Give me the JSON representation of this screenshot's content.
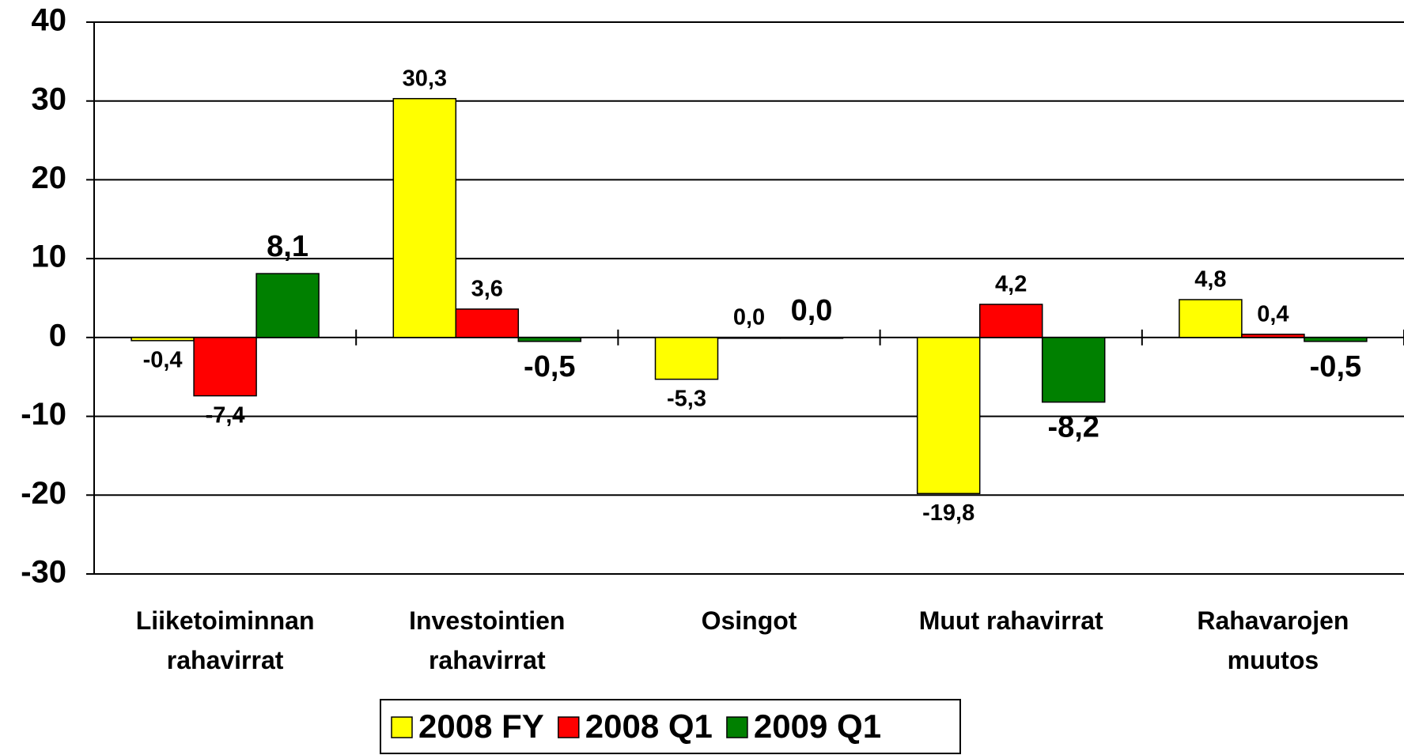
{
  "chart_data": {
    "type": "bar",
    "categories": [
      "Liiketoiminnan\nrahavirrat",
      "Investointien\nrahavirrat",
      "Osingot",
      "Muut rahavirrat",
      "Rahavarojen\nmuutos"
    ],
    "series": [
      {
        "name": "2008 FY",
        "color": "#ffff00",
        "values": [
          -0.4,
          30.3,
          -5.3,
          -19.8,
          4.8
        ],
        "value_labels": [
          "-0,4",
          "30,3",
          "-5,3",
          "-19,8",
          "4,8"
        ]
      },
      {
        "name": "2008 Q1",
        "color": "#ff0000",
        "values": [
          -7.4,
          3.6,
          0.0,
          4.2,
          0.4
        ],
        "value_labels": [
          "-7,4",
          "3,6",
          "0,0",
          "4,2",
          "0,4"
        ]
      },
      {
        "name": "2009 Q1",
        "color": "#008000",
        "values": [
          8.1,
          -0.5,
          0.0,
          -8.2,
          -0.5
        ],
        "value_labels": [
          "8,1",
          "-0,5",
          "0,0",
          "-8,2",
          "-0,5"
        ]
      }
    ],
    "ylim": [
      -30,
      40
    ],
    "yticks": [
      -30,
      -20,
      -10,
      0,
      10,
      20,
      30,
      40
    ],
    "grid": true
  }
}
